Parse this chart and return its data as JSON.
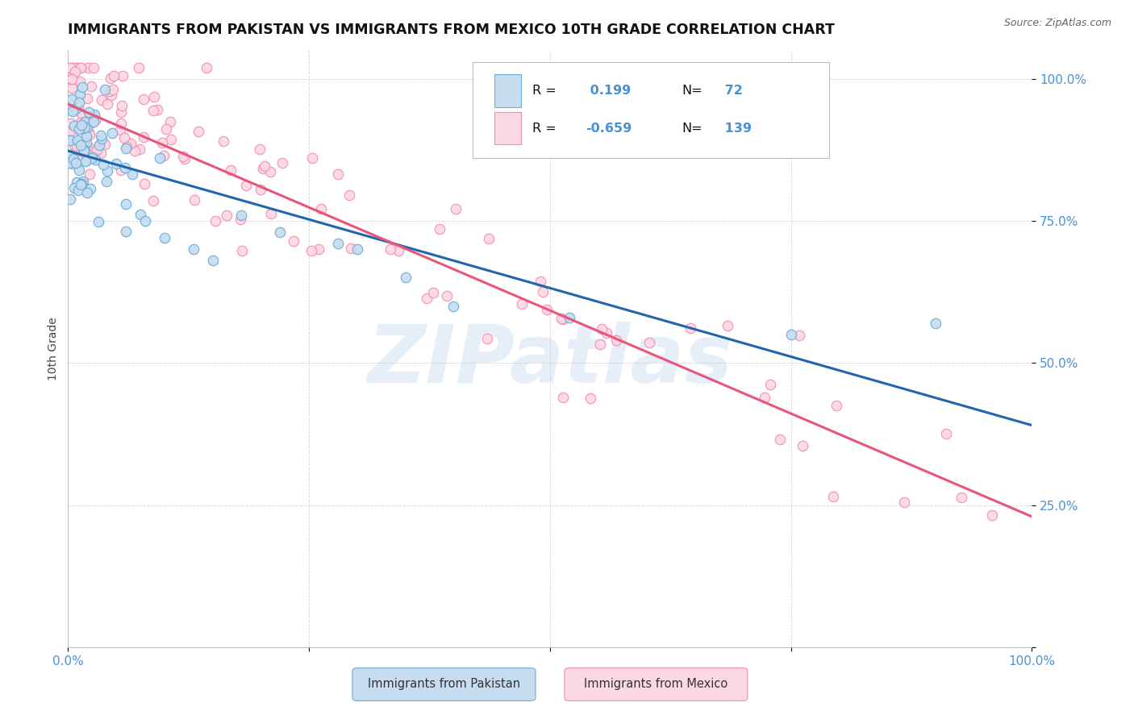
{
  "title": "IMMIGRANTS FROM PAKISTAN VS IMMIGRANTS FROM MEXICO 10TH GRADE CORRELATION CHART",
  "source": "Source: ZipAtlas.com",
  "ylabel": "10th Grade",
  "pakistan_R": 0.199,
  "pakistan_N": 72,
  "mexico_R": -0.659,
  "mexico_N": 139,
  "pakistan_edge_color": "#6baed6",
  "pakistan_face_color": "#c6dcf0",
  "mexico_edge_color": "#f48fb1",
  "mexico_face_color": "#fcd8e5",
  "trend_pakistan_color": "#2166ac",
  "trend_mexico_color": "#e8567a",
  "background_color": "#ffffff",
  "grid_color": "#cccccc",
  "watermark": "ZIPatlas",
  "tick_color": "#4a90d9",
  "legend_text_color": "#4a90d9"
}
